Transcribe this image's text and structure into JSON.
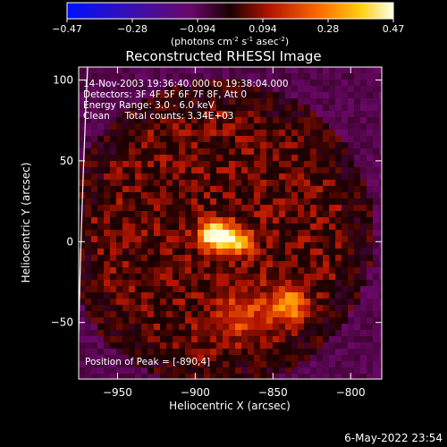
{
  "colorbar": {
    "ticks": [
      "-0.47",
      "-0.28",
      "-0.094",
      "0.094",
      "0.28",
      "0.47"
    ],
    "units_prefix": "(photons cm",
    "units_exp1": "-2",
    "units_mid": " s",
    "units_exp2": "-1",
    "units_mid2": " asec",
    "units_exp3": "-2",
    "units_suffix": ")"
  },
  "annotations": {
    "time_range": "14-Nov-2003 19:36:40.000 to 19:38:04.000",
    "detectors": "Detectors: 3F 4F 5F 6F 7F 8F, Att 0",
    "energy": "Energy Range: 3.0 - 6.0 keV",
    "clean": "Clean     Total counts: 3.34E+03",
    "peak": "Position of Peak = [-890,4]"
  },
  "footer": {
    "date": "6-May-2022 23:54"
  },
  "colors": {
    "background": "#000000",
    "text": "#ffffff",
    "limb": "#ffffff"
  },
  "chart_data": {
    "type": "heatmap",
    "title": "Reconstructed RHESSI Image",
    "xlabel": "Heliocentric X (arcsec)",
    "ylabel": "Heliocentric Y (arcsec)",
    "xlim": [
      -975,
      -780
    ],
    "ylim": [
      -85,
      108
    ],
    "xticks": [
      -950,
      -900,
      -850,
      -800
    ],
    "xtick_labels": [
      "−950",
      "−900",
      "−850",
      "−800"
    ],
    "yticks": [
      100,
      50,
      0,
      -50
    ],
    "ytick_labels": [
      "100",
      "50",
      "0",
      "−50"
    ],
    "colorbar_range": [
      -0.47,
      0.47
    ],
    "colormap": "blue-purple-red-yellow-white",
    "peak_position": [
      -890,
      4
    ],
    "peak_value": 0.47,
    "blobs": [
      {
        "x": -887,
        "y": 4,
        "sx": 7,
        "sy": 6,
        "v": 0.47
      },
      {
        "x": -873,
        "y": 0,
        "sx": 7,
        "sy": 6,
        "v": 0.28
      },
      {
        "x": -840,
        "y": -39,
        "sx": 8,
        "sy": 8,
        "v": 0.25
      },
      {
        "x": -870,
        "y": -45,
        "sx": 12,
        "sy": 10,
        "v": 0.15
      }
    ],
    "grid": false
  }
}
